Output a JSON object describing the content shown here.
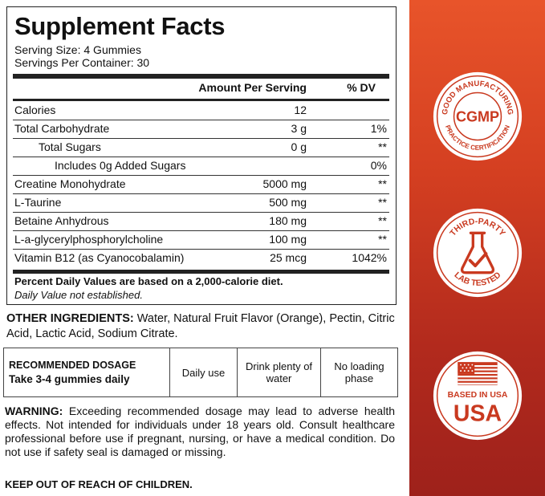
{
  "facts": {
    "title": "Supplement Facts",
    "serving_size": "Serving Size: 4 Gummies",
    "servings_per_container": "Servings Per Container: 30",
    "header_amount": "Amount Per Serving",
    "header_dv": "% DV",
    "rows": [
      {
        "name": "Calories",
        "amount": "12",
        "dv": ""
      },
      {
        "name": "Total Carbohydrate",
        "amount": "3 g",
        "dv": "1%"
      },
      {
        "name": "Total Sugars",
        "amount": "0 g",
        "dv": "**"
      },
      {
        "name": "Includes 0g Added Sugars",
        "amount": "",
        "dv": "0%"
      },
      {
        "name": "Creatine Monohydrate",
        "amount": "5000 mg",
        "dv": "**"
      },
      {
        "name": "L-Taurine",
        "amount": "500 mg",
        "dv": "**"
      },
      {
        "name": "Betaine Anhydrous",
        "amount": "180 mg",
        "dv": "**"
      },
      {
        "name": "L-a-glycerylphosphorylcholine",
        "amount": "100 mg",
        "dv": "**"
      },
      {
        "name": "Vitamin B12 (as Cyanocobalamin)",
        "amount": "25 mcg",
        "dv": "1042%"
      }
    ],
    "footnote_bold": "Percent Daily Values are based on a 2,000-calorie diet.",
    "footnote_italic": "Daily Value not established."
  },
  "ingredients": {
    "label": "OTHER INGREDIENTS:",
    "text": " Water, Natural Fruit Flavor (Orange), Pectin, Citric Acid, Lactic Acid, Sodium Citrate."
  },
  "dosage": {
    "heading": "RECOMMENDED DOSAGE",
    "value": "Take 3-4 gummies daily",
    "cells": [
      "Daily use",
      "Drink plenty of water",
      "No loading phase"
    ]
  },
  "warning": {
    "label": "WARNING:",
    "text": " Exceeding recommended dosage may lead to adverse health effects. Not intended for individuals under 18 years old. Consult healthcare professional before use if pregnant, nursing, or have a medical condition. Do not use if safety seal is damaged or missing.",
    "keep_out": "KEEP OUT OF REACH OF CHILDREN."
  },
  "badges": {
    "cgmp": {
      "top": "GOOD MANUFACTURING",
      "center": "CGMP",
      "bottom": "PRACTICE CERTIFICATION",
      "icon": "cgmp-seal-icon"
    },
    "lab": {
      "top": "THIRD-PARTY",
      "bottom": "LAB TESTED",
      "icon": "flask-check-icon"
    },
    "usa": {
      "line1": "BASED IN USA",
      "line2": "USA",
      "icon": "us-flag-icon"
    }
  },
  "colors": {
    "bar_top": "#e8542a",
    "bar_bottom": "#9e211b",
    "badge_fill": "#ffffff",
    "badge_text": "#c9391f"
  }
}
